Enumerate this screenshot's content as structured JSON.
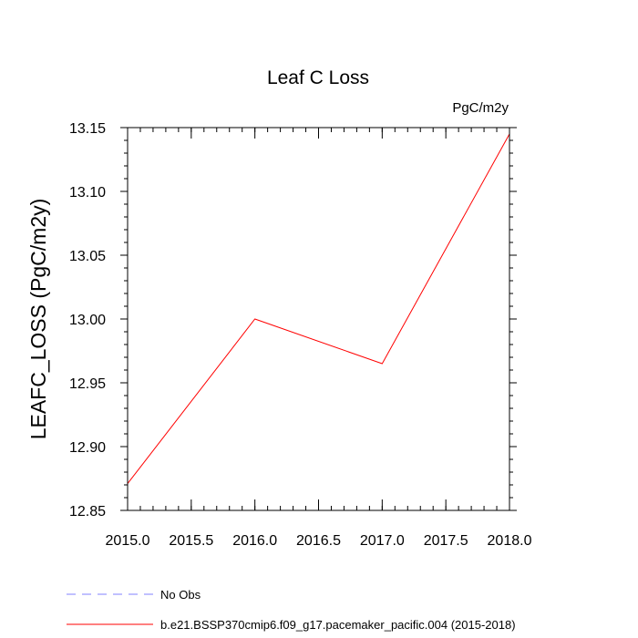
{
  "chart_data": {
    "type": "line",
    "title": "Leaf C Loss",
    "units_label": "PgC/m2y",
    "xlabel": "",
    "ylabel": "LEAFC_LOSS  (PgC/m2y)",
    "xlim": [
      2015.0,
      2018.0
    ],
    "ylim": [
      12.85,
      13.15
    ],
    "x_ticks": [
      "2015.0",
      "2015.5",
      "2016.0",
      "2016.5",
      "2017.0",
      "2017.5",
      "2018.0"
    ],
    "y_ticks": [
      "12.85",
      "12.90",
      "12.95",
      "13.00",
      "13.05",
      "13.10",
      "13.15"
    ],
    "grid": false,
    "legend_position": "bottom",
    "series": [
      {
        "name": "b.e21.BSSP370cmip6.f09_g17.pacemaker_pacific.004 (2015-2018)",
        "color": "#ff0000",
        "style": "solid",
        "x": [
          2015.0,
          2016.0,
          2017.0,
          2018.0
        ],
        "y": [
          12.871,
          13.0,
          12.965,
          13.145
        ]
      }
    ],
    "legend": [
      {
        "label": "No Obs",
        "color": "#8080ff",
        "style": "dashed"
      },
      {
        "label": "b.e21.BSSP370cmip6.f09_g17.pacemaker_pacific.004 (2015-2018)",
        "color": "#ff0000",
        "style": "solid"
      }
    ]
  }
}
